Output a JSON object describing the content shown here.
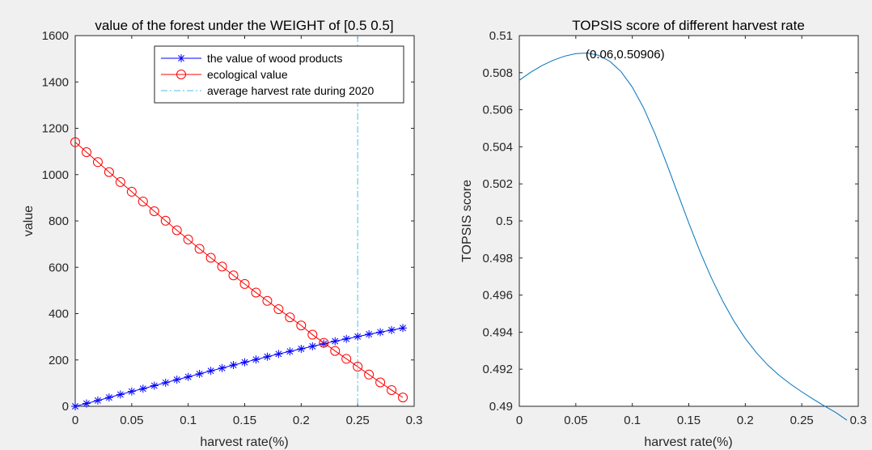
{
  "figure": {
    "background": "#f0f0f0"
  },
  "chart_data": [
    {
      "type": "line",
      "title": "value of the forest under the WEIGHT of [0.5 0.5]",
      "xlabel": "harvest rate(%)",
      "ylabel": "value",
      "xlim": [
        0,
        0.3
      ],
      "ylim": [
        0,
        1600
      ],
      "xticks": [
        0,
        0.05,
        0.1,
        0.15,
        0.2,
        0.25,
        0.3
      ],
      "yticks": [
        0,
        200,
        400,
        600,
        800,
        1000,
        1200,
        1400,
        1600
      ],
      "grid": false,
      "legend_position": "top-right",
      "x": [
        0,
        0.01,
        0.02,
        0.03,
        0.04,
        0.05,
        0.06,
        0.07,
        0.08,
        0.09,
        0.1,
        0.11,
        0.12,
        0.13,
        0.14,
        0.15,
        0.16,
        0.17,
        0.18,
        0.19,
        0.2,
        0.21,
        0.22,
        0.23,
        0.24,
        0.25,
        0.26,
        0.27,
        0.28,
        0.29
      ],
      "series": [
        {
          "name": "the value of wood products",
          "color": "#0000ff",
          "marker": "asterisk",
          "values": [
            0,
            12,
            25,
            38,
            51,
            64,
            76,
            89,
            102,
            115,
            127,
            140,
            153,
            165,
            178,
            190,
            202,
            214,
            226,
            237,
            248,
            259,
            270,
            281,
            291,
            301,
            311,
            320,
            329,
            338
          ]
        },
        {
          "name": "ecological value",
          "color": "#ff0000",
          "marker": "circle",
          "values": [
            1140,
            1097,
            1054,
            1011,
            968,
            926,
            884,
            842,
            801,
            760,
            720,
            680,
            641,
            603,
            565,
            528,
            491,
            455,
            419,
            384,
            349,
            309,
            274,
            239,
            205,
            171,
            137,
            103,
            70,
            38
          ]
        }
      ],
      "reference_lines": [
        {
          "name": "average harvest rate during 2020",
          "x": 0.25,
          "color": "#4dbeee",
          "style": "dash-dot"
        }
      ]
    },
    {
      "type": "line",
      "title": "TOPSIS score of different harvest rate",
      "xlabel": "harvest rate(%)",
      "ylabel": "TOPSIS score",
      "xlim": [
        0,
        0.3
      ],
      "ylim": [
        0.49,
        0.51
      ],
      "xticks": [
        0,
        0.05,
        0.1,
        0.15,
        0.2,
        0.25,
        0.3
      ],
      "yticks": [
        0.49,
        0.492,
        0.494,
        0.496,
        0.498,
        0.5,
        0.502,
        0.504,
        0.506,
        0.508,
        0.51
      ],
      "grid": false,
      "series": [
        {
          "color": "#0072bd",
          "x": [
            0,
            0.01,
            0.02,
            0.03,
            0.04,
            0.05,
            0.06,
            0.07,
            0.08,
            0.09,
            0.1,
            0.11,
            0.12,
            0.13,
            0.14,
            0.15,
            0.16,
            0.17,
            0.18,
            0.19,
            0.2,
            0.21,
            0.22,
            0.23,
            0.24,
            0.25,
            0.26,
            0.27,
            0.28,
            0.29
          ],
          "values": [
            0.50759,
            0.50802,
            0.50838,
            0.50867,
            0.50889,
            0.50903,
            0.50906,
            0.50894,
            0.50862,
            0.50806,
            0.50722,
            0.5061,
            0.50472,
            0.50316,
            0.50152,
            0.49989,
            0.49834,
            0.49693,
            0.49568,
            0.49459,
            0.49366,
            0.49288,
            0.49222,
            0.49167,
            0.4912,
            0.49078,
            0.49039,
            0.49002,
            0.48967,
            0.48925
          ]
        }
      ],
      "annotations": [
        {
          "text": "(0.06,0.50906)",
          "x": 0.06,
          "y": 0.50906
        }
      ]
    }
  ]
}
